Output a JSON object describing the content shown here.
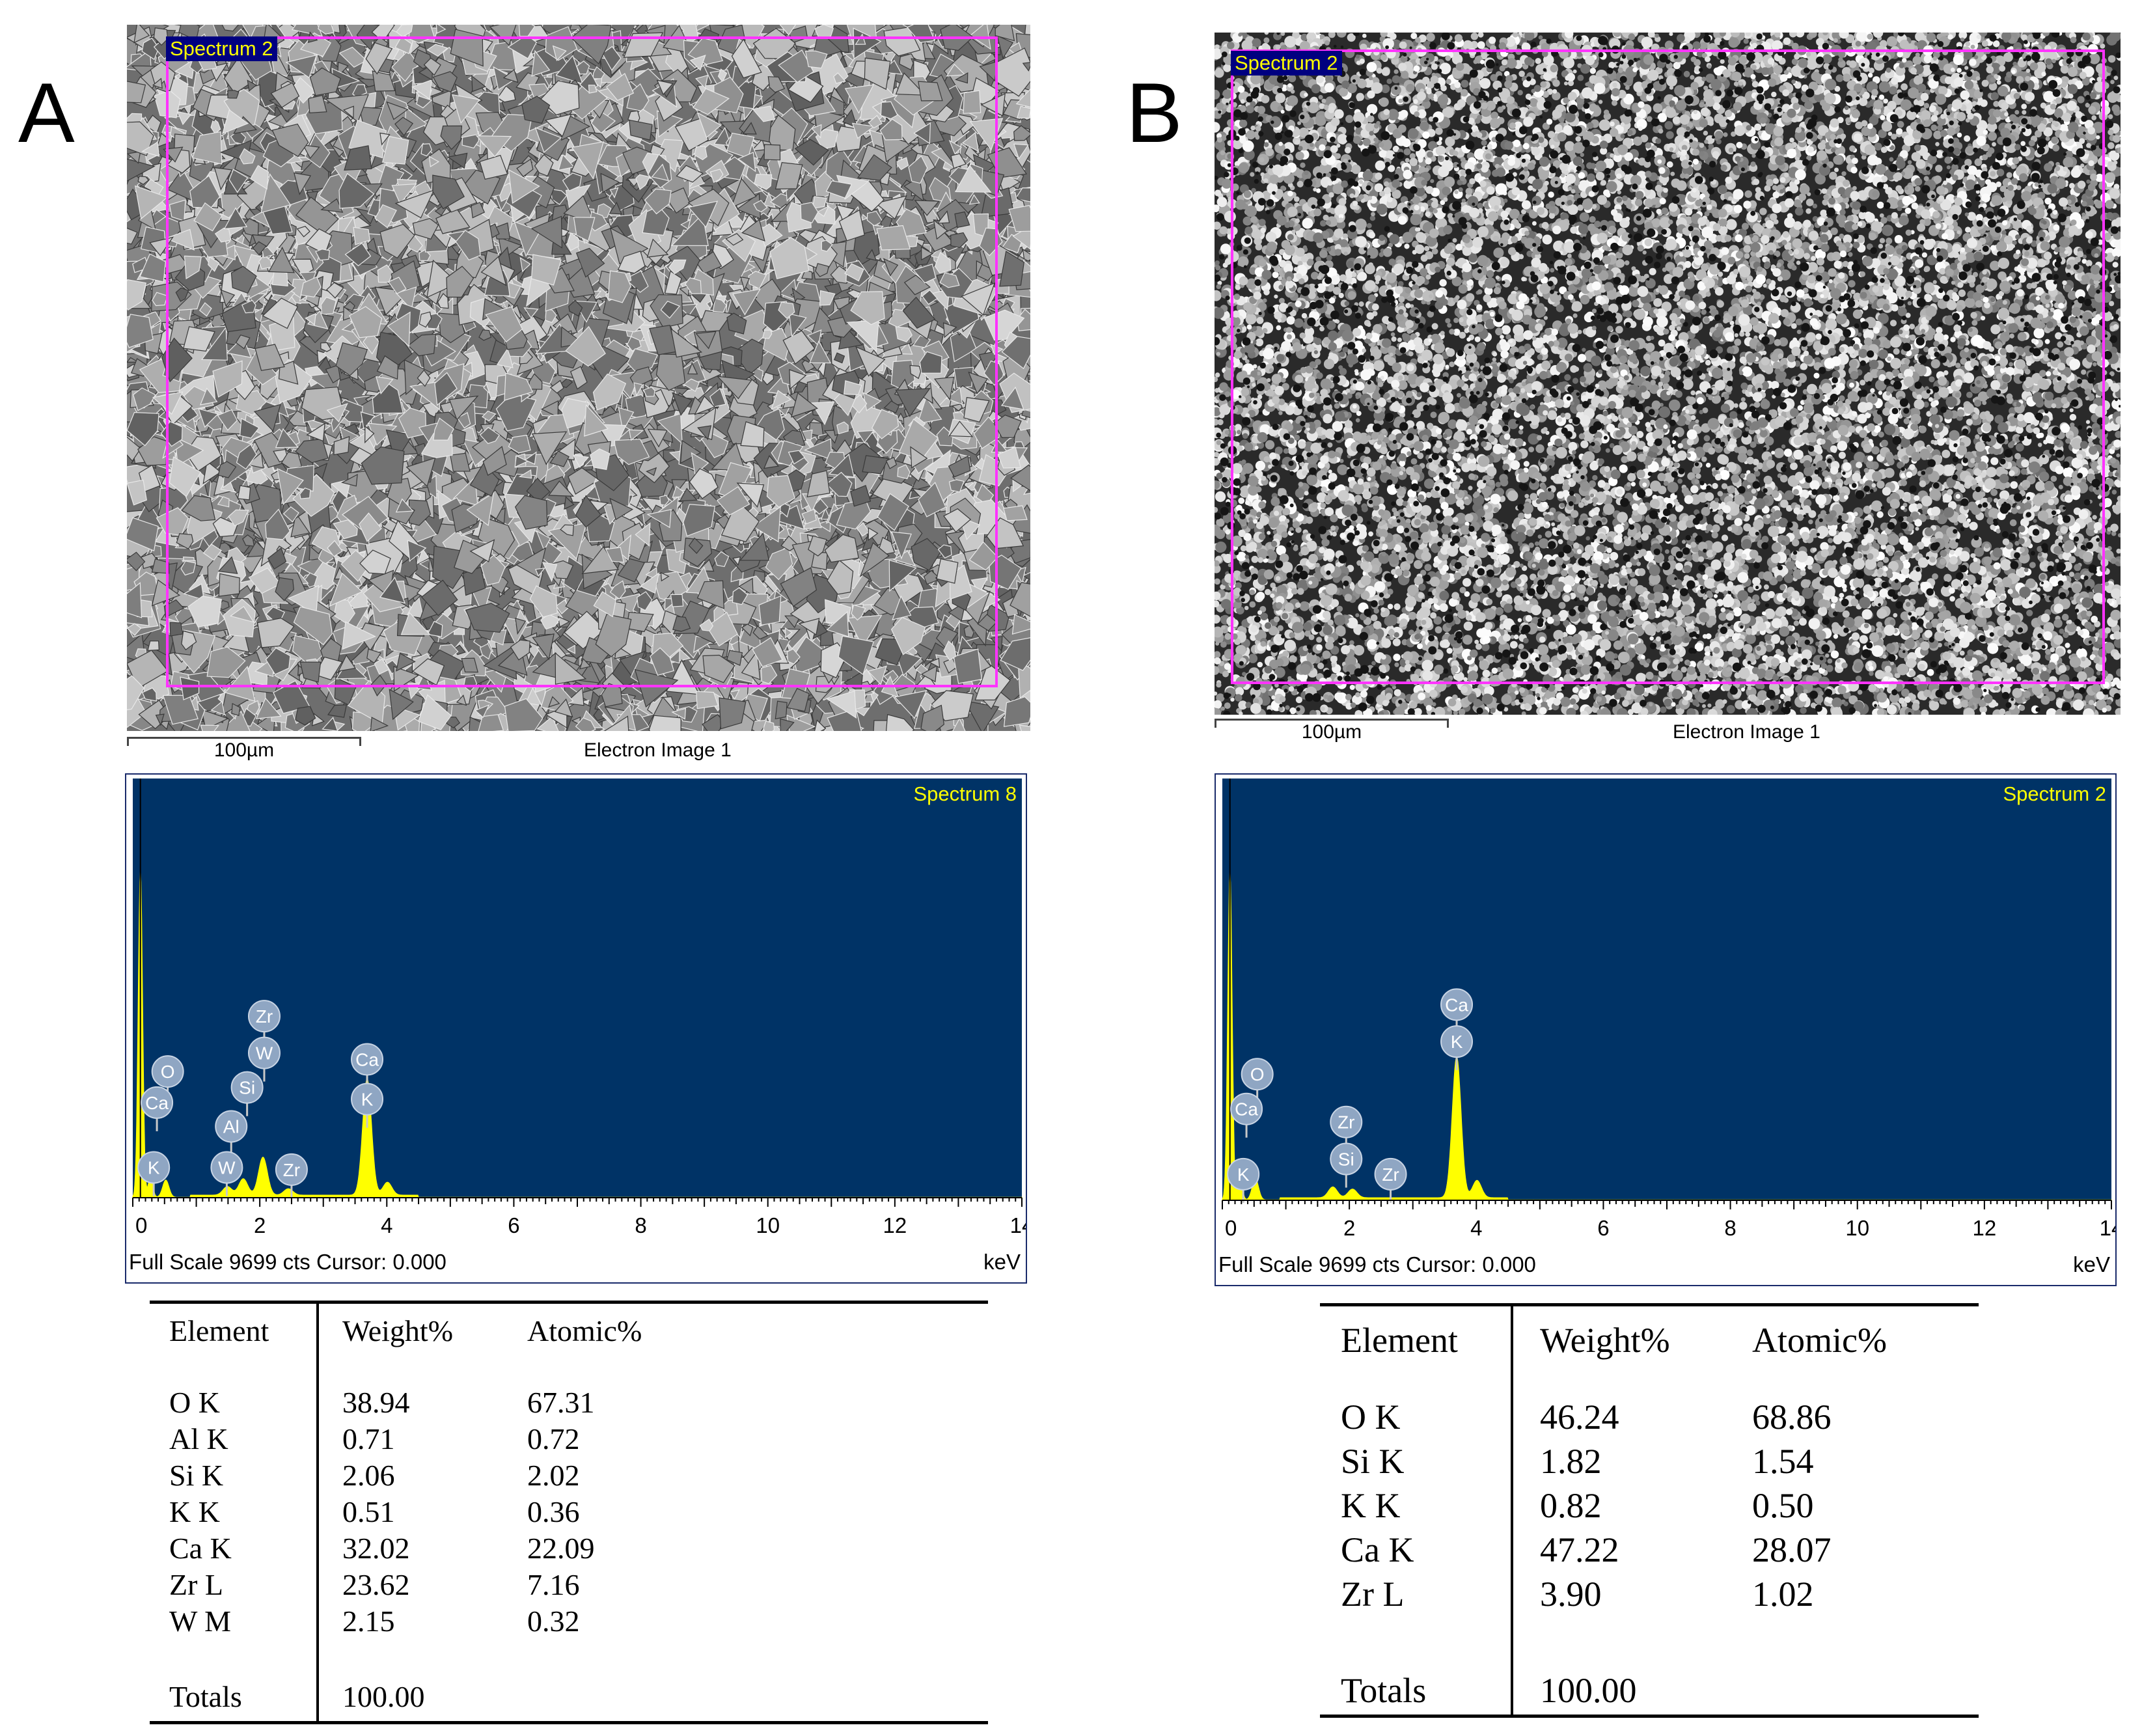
{
  "panels": [
    {
      "letter": "A",
      "sem": {
        "selection_label": "Spectrum 2",
        "scale_label": "100µm",
        "caption": "Electron Image 1",
        "texture": "faceted-grains"
      },
      "eds": {
        "title": "Spectrum 8",
        "status": "Full Scale 9699 cts Cursor: 0.000",
        "unit": "keV",
        "x_ticks": [
          "0",
          "2",
          "4",
          "6",
          "8",
          "10",
          "12",
          "14"
        ],
        "peak_markers": [
          {
            "label": "O"
          },
          {
            "label": "Ca"
          },
          {
            "label": "K"
          },
          {
            "label": "Zr"
          },
          {
            "label": "W"
          },
          {
            "label": "Si"
          },
          {
            "label": "Al"
          },
          {
            "label": "W"
          },
          {
            "label": "Zr"
          },
          {
            "label": "Ca"
          },
          {
            "label": "K"
          }
        ]
      },
      "table": {
        "headers": [
          "Element",
          "Weight%",
          "Atomic%"
        ],
        "rows": [
          [
            "O K",
            "38.94",
            "67.31"
          ],
          [
            "Al K",
            "0.71",
            "0.72"
          ],
          [
            "Si K",
            "2.06",
            "2.02"
          ],
          [
            "K K",
            "0.51",
            "0.36"
          ],
          [
            "Ca K",
            "32.02",
            "22.09"
          ],
          [
            "Zr L",
            "23.62",
            "7.16"
          ],
          [
            "W M",
            "2.15",
            "0.32"
          ]
        ],
        "totals_label": "Totals",
        "totals_value": "100.00"
      }
    },
    {
      "letter": "B",
      "sem": {
        "selection_label": "Spectrum 2",
        "scale_label": "100µm",
        "caption": "Electron Image 1",
        "texture": "porous-particles"
      },
      "eds": {
        "title": "Spectrum 2",
        "status": "Full Scale 9699 cts Cursor: 0.000",
        "unit": "keV",
        "x_ticks": [
          "0",
          "2",
          "4",
          "6",
          "8",
          "10",
          "12",
          "14"
        ],
        "peak_markers": [
          {
            "label": "O"
          },
          {
            "label": "Ca"
          },
          {
            "label": "K"
          },
          {
            "label": "Zr"
          },
          {
            "label": "Si"
          },
          {
            "label": "Zr"
          },
          {
            "label": "Ca"
          },
          {
            "label": "K"
          }
        ]
      },
      "table": {
        "headers": [
          "Element",
          "Weight%",
          "Atomic%"
        ],
        "rows": [
          [
            "O K",
            "46.24",
            "68.86"
          ],
          [
            "Si K",
            "1.82",
            "1.54"
          ],
          [
            "K K",
            "0.82",
            "0.50"
          ],
          [
            "Ca K",
            "47.22",
            "28.07"
          ],
          [
            "Zr L",
            "3.90",
            "1.02"
          ]
        ],
        "totals_label": "Totals",
        "totals_value": "100.00"
      }
    }
  ],
  "chart_data": [
    {
      "type": "line",
      "title": "Spectrum 8",
      "xlabel": "keV",
      "ylabel": "",
      "xlim": [
        0,
        14
      ],
      "ylim": [
        0,
        9699
      ],
      "peaks": [
        {
          "x": 0.12,
          "y": 7600
        },
        {
          "x": 0.28,
          "y": 500
        },
        {
          "x": 0.52,
          "y": 400
        },
        {
          "x": 1.49,
          "y": 200
        },
        {
          "x": 1.74,
          "y": 380
        },
        {
          "x": 2.05,
          "y": 880
        },
        {
          "x": 2.45,
          "y": 150
        },
        {
          "x": 3.69,
          "y": 2700
        },
        {
          "x": 4.01,
          "y": 300
        }
      ]
    },
    {
      "type": "line",
      "title": "Spectrum 2",
      "xlabel": "keV",
      "ylabel": "",
      "xlim": [
        0,
        14
      ],
      "ylim": [
        0,
        9699
      ],
      "peaks": [
        {
          "x": 0.12,
          "y": 7600
        },
        {
          "x": 0.28,
          "y": 500
        },
        {
          "x": 0.52,
          "y": 500
        },
        {
          "x": 1.74,
          "y": 250
        },
        {
          "x": 2.05,
          "y": 200
        },
        {
          "x": 3.69,
          "y": 3250
        },
        {
          "x": 4.01,
          "y": 400
        }
      ]
    }
  ]
}
